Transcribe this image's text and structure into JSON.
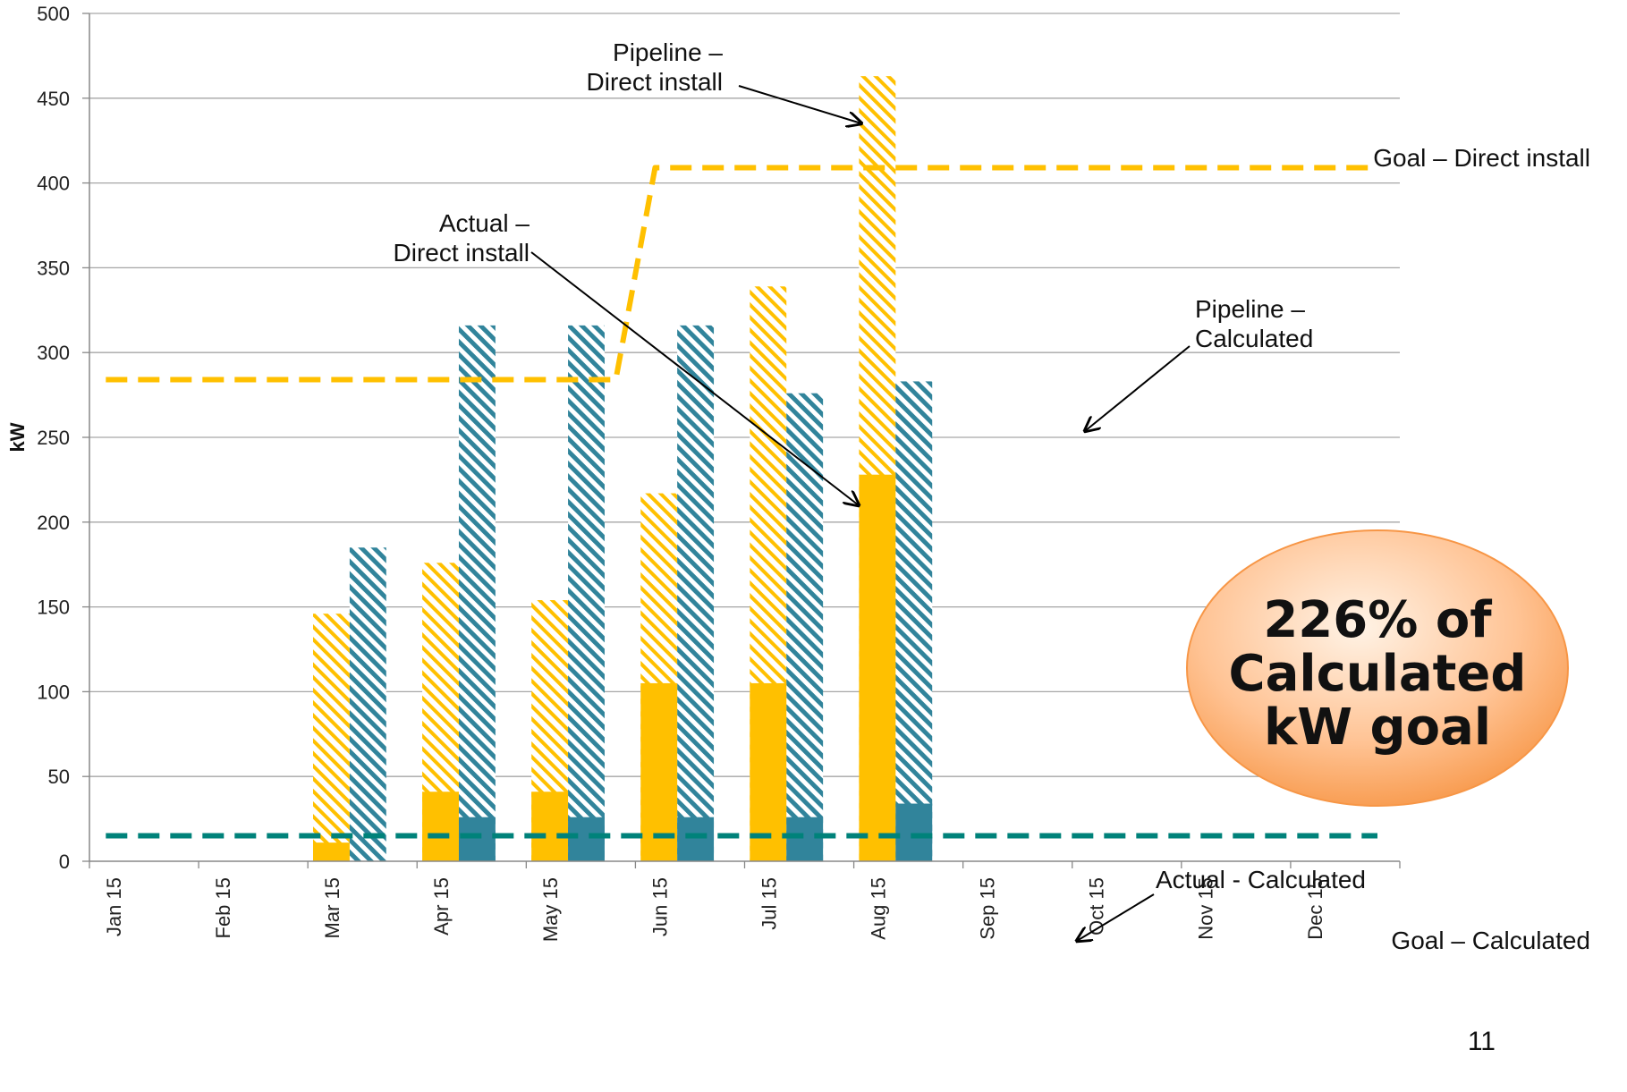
{
  "chart_data": {
    "type": "bar",
    "ylabel": "kW",
    "ylim": [
      0,
      500
    ],
    "yticks": [
      0,
      50,
      100,
      150,
      200,
      250,
      300,
      350,
      400,
      450,
      500
    ],
    "categories": [
      "Jan 15",
      "Feb 15",
      "Mar 15",
      "Apr 15",
      "May 15",
      "Jun 15",
      "Jul 15",
      "Aug 15",
      "Sep 15",
      "Oct 15",
      "Nov 15",
      "Dec 15"
    ],
    "grid": true,
    "series": [
      {
        "name": "Actual – Direct install",
        "kind": "bar",
        "group": "direct",
        "style": "solid",
        "color": "#FFC000",
        "values": [
          null,
          null,
          11,
          41,
          41,
          105,
          105,
          228,
          null,
          null,
          null,
          null
        ]
      },
      {
        "name": "Pipeline – Direct install",
        "kind": "bar",
        "group": "direct",
        "style": "hatched",
        "color": "#FFC000",
        "values": [
          null,
          null,
          146,
          176,
          154,
          217,
          339,
          463,
          null,
          null,
          null,
          null
        ]
      },
      {
        "name": "Actual - Calculated",
        "kind": "bar",
        "group": "calculated",
        "style": "solid",
        "color": "#31849B",
        "values": [
          null,
          null,
          0,
          26,
          26,
          26,
          26,
          34,
          null,
          null,
          null,
          null
        ]
      },
      {
        "name": "Pipeline – Calculated",
        "kind": "bar",
        "group": "calculated",
        "style": "hatched",
        "color": "#31849B",
        "values": [
          null,
          null,
          185,
          316,
          316,
          316,
          276,
          283,
          null,
          null,
          null,
          null
        ]
      },
      {
        "name": "Goal – Direct install",
        "kind": "line",
        "style": "dashed",
        "color": "#FFC000",
        "x": [
          "Jan 15",
          "May 15",
          "Jun 15",
          "Dec 15"
        ],
        "values": [
          284,
          284,
          409,
          409
        ]
      },
      {
        "name": "Goal – Calculated",
        "kind": "line",
        "style": "dashed",
        "color": "#00827A",
        "x": [
          "Jan 15",
          "Dec 15"
        ],
        "values": [
          15,
          15
        ]
      }
    ],
    "annotations": {
      "pipeline_direct": [
        "Pipeline –",
        "Direct install"
      ],
      "actual_direct": [
        "Actual –",
        "Direct install"
      ],
      "pipeline_calculated": [
        "Pipeline –",
        "Calculated"
      ],
      "goal_direct": "Goal – Direct install",
      "actual_calculated": "Actual - Calculated",
      "goal_calculated": "Goal – Calculated"
    },
    "callout": [
      "226% of",
      "Calculated",
      "kW goal"
    ]
  },
  "page_number": "11"
}
